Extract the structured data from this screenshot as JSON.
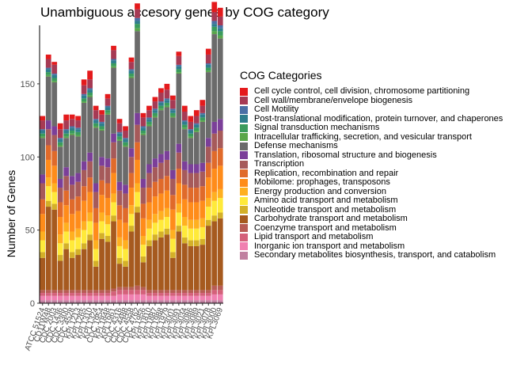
{
  "chart_data": {
    "type": "bar",
    "stacked": true,
    "title": "Unambiguous accesory genes by COG category",
    "xlabel": "",
    "ylabel": "Number of Genes",
    "ylim": [
      0,
      190
    ],
    "yticks": [
      0,
      50,
      100,
      150
    ],
    "grid": false,
    "legend_position": "right",
    "legend_title": "COG Categories",
    "categories": [
      "ATCC 51524",
      "CD11W48",
      "CDC 2003",
      "CDC 1436",
      "CDC 3300",
      "CDC 4528",
      "KPL1213",
      "KPL1265",
      "KPL1310",
      "KPL1324",
      "CDC 1954",
      "KPL1848",
      "KPL1961",
      "CDC 4316",
      "CDC 4488",
      "CDC 4558",
      "CDC 4762",
      "KPL1956",
      "KPL1810",
      "KPL1887",
      "KPL1988",
      "KPL1979",
      "KPL3001",
      "KPL3091",
      "KPL3034",
      "KPL3086",
      "KPL3089",
      "KPL3021",
      "KPL3078",
      "KPL3000",
      "KPL3069"
    ],
    "series": [
      {
        "name": "Cell cycle control, cell division, chromosome partitioning",
        "color": "#e41a1c",
        "values": [
          3,
          3,
          2,
          4,
          4,
          3,
          3,
          4,
          6,
          3,
          3,
          3,
          3,
          3,
          3,
          3,
          4,
          3,
          3,
          3,
          3,
          4,
          3,
          3,
          4,
          4,
          4,
          4,
          4,
          7,
          6
        ]
      },
      {
        "name": "Cell wall/membrane/envelope biogenesis",
        "color": "#a63a54",
        "values": [
          6,
          6,
          6,
          6,
          6,
          5,
          5,
          6,
          6,
          6,
          5,
          5,
          6,
          6,
          5,
          5,
          6,
          6,
          5,
          5,
          6,
          6,
          6,
          6,
          6,
          5,
          5,
          5,
          6,
          6,
          6
        ]
      },
      {
        "name": "Cell Motility",
        "color": "#4a6fa5",
        "values": [
          1,
          1,
          1,
          1,
          1,
          1,
          1,
          1,
          1,
          1,
          1,
          1,
          1,
          1,
          1,
          1,
          2,
          1,
          1,
          1,
          1,
          1,
          1,
          1,
          1,
          1,
          1,
          1,
          1,
          2,
          2
        ]
      },
      {
        "name": "Post-translational modification, protein turnover, and chaperones",
        "color": "#2e7d8c",
        "values": [
          2,
          2,
          2,
          2,
          2,
          2,
          2,
          2,
          2,
          2,
          2,
          2,
          2,
          2,
          2,
          2,
          2,
          2,
          2,
          2,
          2,
          2,
          2,
          2,
          2,
          2,
          2,
          2,
          2,
          2,
          2
        ]
      },
      {
        "name": "Signal transduction mechanisms",
        "color": "#3a9b5c",
        "values": [
          2,
          2,
          2,
          2,
          2,
          2,
          2,
          2,
          2,
          2,
          2,
          2,
          2,
          2,
          2,
          2,
          3,
          2,
          2,
          2,
          2,
          2,
          2,
          2,
          2,
          2,
          2,
          2,
          2,
          3,
          3
        ]
      },
      {
        "name": "Intracellular trafficking, secretion, and vesicular transport",
        "color": "#5aa64a",
        "values": [
          1,
          1,
          1,
          1,
          1,
          1,
          1,
          1,
          1,
          1,
          1,
          1,
          1,
          1,
          1,
          1,
          2,
          1,
          1,
          1,
          1,
          1,
          1,
          1,
          1,
          1,
          1,
          1,
          1,
          2,
          2
        ]
      },
      {
        "name": "Defense mechanisms",
        "color": "#6b6b6b",
        "values": [
          25,
          30,
          30,
          22,
          20,
          28,
          25,
          40,
          38,
          38,
          18,
          30,
          45,
          28,
          26,
          48,
          56,
          30,
          26,
          28,
          30,
          30,
          36,
          48,
          22,
          18,
          22,
          28,
          45,
          60,
          55
        ]
      },
      {
        "name": "Translation, ribosomal structure and biogenesis",
        "color": "#7b3f99",
        "values": [
          6,
          6,
          6,
          6,
          6,
          6,
          6,
          6,
          6,
          6,
          6,
          6,
          6,
          6,
          6,
          6,
          8,
          6,
          6,
          6,
          6,
          6,
          6,
          6,
          6,
          6,
          6,
          6,
          6,
          8,
          8
        ]
      },
      {
        "name": "Transcription",
        "color": "#a65a5a",
        "values": [
          11,
          11,
          11,
          10,
          10,
          10,
          10,
          11,
          11,
          11,
          10,
          11,
          11,
          10,
          10,
          11,
          12,
          11,
          10,
          10,
          11,
          11,
          11,
          11,
          10,
          10,
          10,
          10,
          11,
          12,
          12
        ]
      },
      {
        "name": "Replication, recombination and repair",
        "color": "#e06a2a",
        "values": [
          10,
          10,
          10,
          10,
          10,
          10,
          10,
          10,
          10,
          10,
          10,
          10,
          10,
          10,
          10,
          10,
          12,
          10,
          10,
          10,
          10,
          10,
          10,
          10,
          10,
          10,
          10,
          10,
          10,
          12,
          12
        ]
      },
      {
        "name": "Mobilome: prophages, transposons",
        "color": "#ff8c1a",
        "values": [
          12,
          12,
          12,
          12,
          12,
          12,
          12,
          14,
          14,
          12,
          12,
          12,
          14,
          12,
          12,
          12,
          16,
          12,
          12,
          12,
          12,
          12,
          14,
          14,
          12,
          12,
          12,
          12,
          14,
          16,
          16
        ]
      },
      {
        "name": "Energy production and conversion",
        "color": "#ffb020",
        "values": [
          6,
          6,
          6,
          6,
          6,
          6,
          6,
          6,
          6,
          6,
          6,
          6,
          6,
          6,
          6,
          6,
          6,
          6,
          6,
          6,
          6,
          6,
          6,
          6,
          6,
          6,
          6,
          6,
          6,
          6,
          6
        ]
      },
      {
        "name": "Amino acid transport and metabolism",
        "color": "#ffea3a",
        "values": [
          8,
          10,
          8,
          8,
          8,
          8,
          8,
          9,
          9,
          8,
          8,
          8,
          9,
          8,
          8,
          8,
          10,
          8,
          8,
          8,
          8,
          8,
          9,
          9,
          8,
          8,
          8,
          8,
          9,
          10,
          10
        ]
      },
      {
        "name": "Nucleotide transport and metabolism",
        "color": "#d4b028",
        "values": [
          4,
          4,
          4,
          4,
          4,
          4,
          4,
          4,
          4,
          4,
          4,
          4,
          4,
          4,
          4,
          4,
          4,
          4,
          4,
          4,
          4,
          4,
          4,
          4,
          4,
          4,
          4,
          4,
          4,
          4,
          4
        ]
      },
      {
        "name": "Carbohydrate transport and metabolism",
        "color": "#a65a1f",
        "values": [
          22,
          57,
          55,
          20,
          28,
          22,
          24,
          28,
          34,
          16,
          35,
          33,
          46,
          16,
          14,
          38,
          50,
          17,
          30,
          34,
          36,
          38,
          22,
          40,
          32,
          30,
          30,
          31,
          44,
          44,
          46
        ]
      },
      {
        "name": "Coenzyme transport and metabolism",
        "color": "#b85c55",
        "values": [
          2,
          2,
          2,
          2,
          2,
          2,
          2,
          2,
          2,
          2,
          2,
          2,
          2,
          2,
          2,
          2,
          3,
          2,
          2,
          2,
          2,
          2,
          2,
          2,
          2,
          2,
          2,
          2,
          2,
          3,
          3
        ]
      },
      {
        "name": "Lipid transport and metabolism",
        "color": "#d4607a",
        "values": [
          2,
          2,
          2,
          2,
          2,
          2,
          2,
          2,
          2,
          2,
          2,
          2,
          3,
          3,
          3,
          3,
          3,
          3,
          2,
          2,
          2,
          2,
          2,
          2,
          2,
          2,
          2,
          2,
          2,
          3,
          3
        ]
      },
      {
        "name": "Inorganic ion transport and metabolism",
        "color": "#f080b0",
        "values": [
          3,
          3,
          3,
          3,
          3,
          3,
          3,
          3,
          3,
          3,
          3,
          3,
          3,
          4,
          4,
          4,
          4,
          4,
          3,
          3,
          3,
          3,
          3,
          3,
          3,
          3,
          3,
          3,
          3,
          4,
          4
        ]
      },
      {
        "name": "Secondary metabolites biosynthesis, transport, and catabolism",
        "color": "#c080a0",
        "values": [
          2,
          2,
          2,
          2,
          2,
          2,
          2,
          2,
          2,
          2,
          2,
          2,
          2,
          2,
          2,
          2,
          2,
          2,
          2,
          2,
          2,
          2,
          2,
          2,
          2,
          2,
          2,
          2,
          2,
          2,
          2
        ]
      }
    ]
  }
}
